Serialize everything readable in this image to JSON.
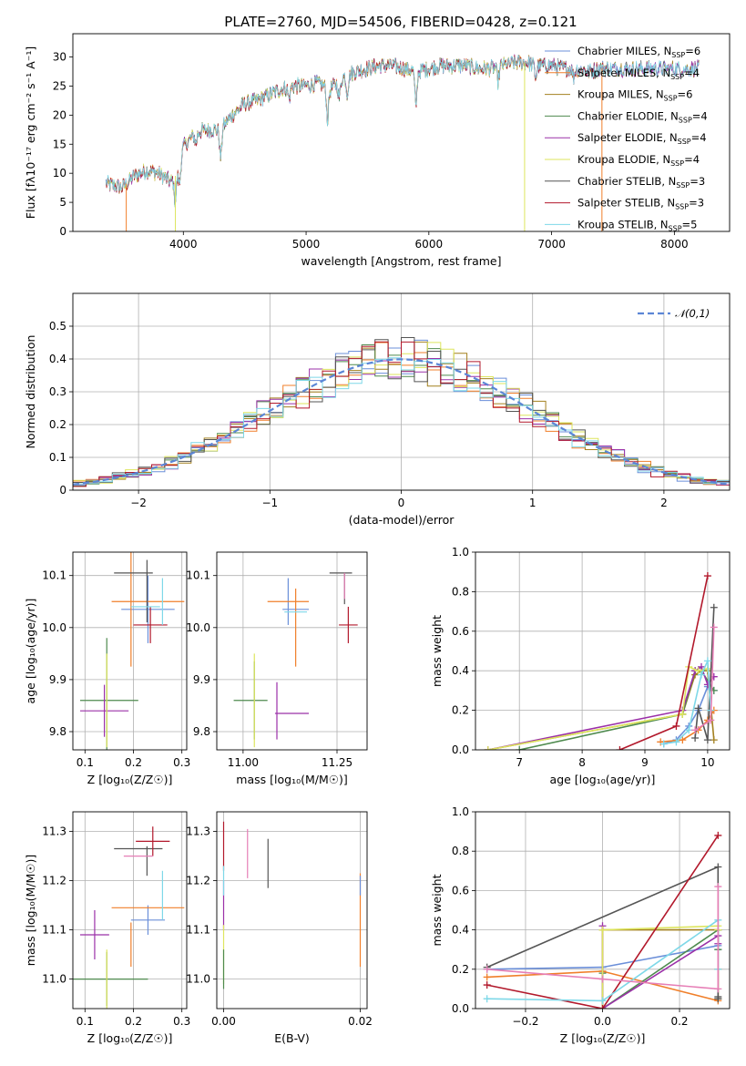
{
  "figure_title": "PLATE=2760, MJD=54506, FIBERID=0428, z=0.121",
  "palette": [
    "#6b8fd9",
    "#f07f2a",
    "#a3801f",
    "#4e8a4e",
    "#9b30a8",
    "#dde55e",
    "#555555",
    "#b2182b",
    "#7ed8e8",
    "#e67fb6",
    "#9acd32",
    "#e6a05f"
  ],
  "chart_data": [
    {
      "id": "spectrum",
      "type": "line",
      "title": "PLATE=2760, MJD=54506, FIBERID=0428, z=0.121",
      "xlabel": "wavelength [Angstrom, rest frame]",
      "ylabel": "Flux [fλ10⁻¹⁷ erg cm⁻² s⁻¹ A⁻¹]",
      "xlim": [
        3100,
        8450
      ],
      "ylim": [
        0,
        34
      ],
      "xticks": [
        4000,
        5000,
        6000,
        7000,
        8000
      ],
      "yticks": [
        0,
        5,
        10,
        15,
        20,
        25,
        30
      ],
      "grid": false,
      "legend_position": "top-right",
      "series_names": [
        "Chabrier MILES, N_SSP=6",
        "Salpeter MILES, N_SSP=4",
        "Kroupa MILES, N_SSP=6",
        "Chabrier ELODIE, N_SSP=4",
        "Salpeter ELODIE, N_SSP=4",
        "Kroupa ELODIE, N_SSP=4",
        "Chabrier STELIB, N_SSP=3",
        "Salpeter STELIB, N_SSP=3",
        "Kroupa STELIB, N_SSP=5"
      ],
      "continuum": [
        [
          3370,
          8.2
        ],
        [
          3500,
          7.5
        ],
        [
          3600,
          9.5
        ],
        [
          3700,
          10.5
        ],
        [
          3800,
          10
        ],
        [
          3900,
          8.5
        ],
        [
          3950,
          10
        ],
        [
          4000,
          14.5
        ],
        [
          4100,
          17
        ],
        [
          4200,
          17.5
        ],
        [
          4300,
          17.5
        ],
        [
          4400,
          20
        ],
        [
          4500,
          22
        ],
        [
          4600,
          22.5
        ],
        [
          4700,
          23.5
        ],
        [
          4800,
          24.5
        ],
        [
          4900,
          25
        ],
        [
          5000,
          25
        ],
        [
          5100,
          25.5
        ],
        [
          5200,
          24.5
        ],
        [
          5300,
          26.5
        ],
        [
          5400,
          27.5
        ],
        [
          5500,
          28
        ],
        [
          5600,
          28.5
        ],
        [
          5700,
          28.5
        ],
        [
          5800,
          28
        ],
        [
          5900,
          27.5
        ],
        [
          6000,
          28
        ],
        [
          6100,
          28.5
        ],
        [
          6200,
          28.5
        ],
        [
          6300,
          28.5
        ],
        [
          6400,
          28
        ],
        [
          6500,
          28
        ],
        [
          6600,
          28.5
        ],
        [
          6700,
          29
        ],
        [
          6800,
          29
        ],
        [
          6900,
          28.5
        ],
        [
          7000,
          28.5
        ],
        [
          7100,
          28
        ],
        [
          7200,
          28
        ],
        [
          7300,
          27.5
        ],
        [
          7400,
          28
        ]
      ],
      "absorption": [
        [
          3934,
          4.5
        ],
        [
          3969,
          3.5
        ],
        [
          4102,
          2
        ],
        [
          4304,
          5
        ],
        [
          4861,
          2
        ],
        [
          5175,
          5.5
        ],
        [
          5270,
          3
        ],
        [
          5335,
          3
        ],
        [
          5894,
          6
        ],
        [
          6563,
          2.5
        ],
        [
          6870,
          2
        ],
        [
          7180,
          1.5
        ]
      ],
      "drops": [
        {
          "x": 3535,
          "series": 1
        },
        {
          "x": 3935,
          "series": 5
        },
        {
          "x": 6780,
          "series": 5
        },
        {
          "x": 7410,
          "series": 1
        }
      ],
      "series_end": [
        8200,
        7470,
        8200,
        7470,
        8200,
        6780,
        8200,
        7470,
        8200
      ]
    },
    {
      "id": "residuals",
      "type": "bar",
      "xlabel": "(data-model)/error",
      "ylabel": "Normed distribution",
      "xlim": [
        -2.5,
        2.5
      ],
      "ylim": [
        0,
        0.6
      ],
      "xticks": [
        -2,
        -1,
        0,
        1,
        2
      ],
      "yticks": [
        0,
        0.1,
        0.2,
        0.3,
        0.4,
        0.5
      ],
      "grid": true,
      "legend_position": "top-right",
      "legend_label": "𝒩(0,1)",
      "reference_curve": {
        "type": "normal",
        "mean": 0,
        "sigma": 1,
        "color": "#5b86d6"
      },
      "bin_width": 0.1,
      "step_series_count": 9
    },
    {
      "id": "age_vs_Z",
      "type": "scatter",
      "xlabel": "Z [log₁₀(Z/Z☉)]",
      "ylabel": "age  [log₁₀(age/yr)]",
      "xlim": [
        0.075,
        0.31
      ],
      "ylim": [
        9.765,
        10.145
      ],
      "xticks": [
        0.1,
        0.2,
        0.3
      ],
      "xtick_labels": [
        "0.1",
        "0.2",
        "0.3"
      ],
      "yticks": [
        9.8,
        9.9,
        10.0,
        10.1
      ],
      "ytick_labels": [
        "9.8",
        "9.9",
        "10.0",
        "10.1"
      ],
      "grid": true,
      "points": [
        {
          "x": 0.23,
          "y": 10.035,
          "xerr": 0.055,
          "yerr": 0.065,
          "c": 0
        },
        {
          "x": 0.195,
          "y": 10.05,
          "xerr": 0.0,
          "yerr": 0.125,
          "c": 1
        },
        {
          "x": 0.23,
          "y": 10.05,
          "xerr": 0.075,
          "yerr": 0.0,
          "c": 1
        },
        {
          "x": 0.145,
          "y": 9.86,
          "xerr": 0.0,
          "yerr": 0.12,
          "c": 3
        },
        {
          "x": 0.15,
          "y": 9.86,
          "xerr": 0.06,
          "yerr": 0.0,
          "c": 3
        },
        {
          "x": 0.14,
          "y": 9.84,
          "xerr": 0.05,
          "yerr": 0.05,
          "c": 4
        },
        {
          "x": 0.145,
          "y": 9.86,
          "xerr": 0.0,
          "yerr": 0.09,
          "c": 5
        },
        {
          "x": 0.2,
          "y": 10.105,
          "xerr": 0.04,
          "yerr": 0.0,
          "c": 6
        },
        {
          "x": 0.228,
          "y": 10.07,
          "xerr": 0.0,
          "yerr": 0.06,
          "c": 6
        },
        {
          "x": 0.235,
          "y": 10.005,
          "xerr": 0.035,
          "yerr": 0.035,
          "c": 7
        },
        {
          "x": 0.26,
          "y": 10.05,
          "xerr": 0.0,
          "yerr": 0.045,
          "c": 8
        },
        {
          "x": 0.225,
          "y": 10.04,
          "xerr": 0.03,
          "yerr": 0.0,
          "c": 8
        }
      ]
    },
    {
      "id": "age_vs_mass",
      "type": "scatter",
      "xlabel": "mass [log₁₀(M/M☉)]",
      "ylabel": "",
      "xlim": [
        10.93,
        11.33
      ],
      "ylim": [
        9.765,
        10.145
      ],
      "xticks": [
        11.0,
        11.25
      ],
      "xtick_labels": [
        "11.00",
        "11.25"
      ],
      "yticks": [
        9.8,
        9.9,
        10.0,
        10.1
      ],
      "ytick_labels": [
        "9.8",
        "9.9",
        "10.0",
        "10.1"
      ],
      "grid": true,
      "points": [
        {
          "x": 11.12,
          "y": 10.05,
          "xerr": 0.0,
          "yerr": 0.045,
          "c": 0
        },
        {
          "x": 11.14,
          "y": 10.035,
          "xerr": 0.035,
          "yerr": 0.0,
          "c": 0
        },
        {
          "x": 11.14,
          "y": 10.0,
          "xerr": 0.0,
          "yerr": 0.075,
          "c": 1
        },
        {
          "x": 11.12,
          "y": 10.05,
          "xerr": 0.055,
          "yerr": 0.0,
          "c": 1
        },
        {
          "x": 11.02,
          "y": 9.86,
          "xerr": 0.045,
          "yerr": 0.0,
          "c": 3
        },
        {
          "x": 11.03,
          "y": 9.86,
          "xerr": 0.0,
          "yerr": 0.075,
          "c": 3
        },
        {
          "x": 11.09,
          "y": 9.84,
          "xerr": 0.0,
          "yerr": 0.055,
          "c": 4
        },
        {
          "x": 11.13,
          "y": 9.835,
          "xerr": 0.045,
          "yerr": 0.0,
          "c": 4
        },
        {
          "x": 11.03,
          "y": 9.86,
          "xerr": 0.0,
          "yerr": 0.09,
          "c": 5
        },
        {
          "x": 11.26,
          "y": 10.105,
          "xerr": 0.03,
          "yerr": 0.0,
          "c": 6
        },
        {
          "x": 11.27,
          "y": 10.075,
          "xerr": 0.0,
          "yerr": 0.03,
          "c": 6
        },
        {
          "x": 11.28,
          "y": 10.005,
          "xerr": 0.025,
          "yerr": 0.035,
          "c": 7
        },
        {
          "x": 11.27,
          "y": 10.08,
          "xerr": 0.0,
          "yerr": 0.025,
          "c": 9
        },
        {
          "x": 11.14,
          "y": 10.03,
          "xerr": 0.03,
          "yerr": 0.0,
          "c": 8
        }
      ]
    },
    {
      "id": "weight_vs_age",
      "type": "line",
      "xlabel": "age  [log₁₀(age/yr)]",
      "ylabel": "mass weight",
      "xlim": [
        6.3,
        10.35
      ],
      "ylim": [
        0,
        1.0
      ],
      "xticks": [
        7,
        8,
        9,
        10
      ],
      "xtick_labels": [
        "7",
        "8",
        "9",
        "10"
      ],
      "yticks": [
        0,
        0.2,
        0.4,
        0.6,
        0.8,
        1.0
      ],
      "ytick_labels": [
        "0.0",
        "0.2",
        "0.4",
        "0.6",
        "0.8",
        "1.0"
      ],
      "grid": true,
      "series": [
        {
          "c": 0,
          "x": [
            9.3,
            9.5,
            9.7,
            9.85,
            10.0,
            10.1
          ],
          "y": [
            0.03,
            0.05,
            0.12,
            0.2,
            0.32,
            0.3
          ]
        },
        {
          "c": 1,
          "x": [
            9.25,
            9.6,
            9.85,
            10.0,
            10.1
          ],
          "y": [
            0.04,
            0.05,
            0.1,
            0.15,
            0.2
          ]
        },
        {
          "c": 2,
          "x": [
            6.5,
            9.6,
            9.8,
            9.9,
            10.0,
            10.1
          ],
          "y": [
            0.0,
            0.18,
            0.38,
            0.4,
            0.4,
            0.05
          ]
        },
        {
          "c": 3,
          "x": [
            7.0,
            9.6,
            9.8,
            9.9,
            10.1
          ],
          "y": [
            0.0,
            0.18,
            0.4,
            0.4,
            0.3
          ]
        },
        {
          "c": 4,
          "x": [
            6.5,
            9.6,
            9.8,
            9.9,
            10.0,
            10.1
          ],
          "y": [
            0.0,
            0.2,
            0.4,
            0.42,
            0.33,
            0.37
          ]
        },
        {
          "c": 5,
          "x": [
            6.5,
            9.6,
            9.7,
            9.85,
            10.0
          ],
          "y": [
            0.0,
            0.18,
            0.42,
            0.4,
            0.41
          ]
        },
        {
          "c": 6,
          "x": [
            9.8,
            9.85,
            10.0,
            10.1
          ],
          "y": [
            0.06,
            0.21,
            0.05,
            0.72
          ]
        },
        {
          "c": 7,
          "x": [
            8.6,
            9.5,
            10.0
          ],
          "y": [
            0.0,
            0.12,
            0.88
          ]
        },
        {
          "c": 8,
          "x": [
            9.3,
            9.5,
            9.7,
            9.9,
            10.0,
            10.05
          ],
          "y": [
            0.03,
            0.04,
            0.1,
            0.38,
            0.45,
            0.2
          ]
        },
        {
          "c": 9,
          "x": [
            9.8,
            10.05,
            10.1
          ],
          "y": [
            0.1,
            0.15,
            0.62
          ]
        }
      ]
    },
    {
      "id": "mass_vs_Z",
      "type": "scatter",
      "xlabel": "Z [log₁₀(Z/Z☉)]",
      "ylabel": "mass [log₁₀(M/M☉)]",
      "xlim": [
        0.075,
        0.31
      ],
      "ylim": [
        10.94,
        11.34
      ],
      "xticks": [
        0.1,
        0.2,
        0.3
      ],
      "xtick_labels": [
        "0.1",
        "0.2",
        "0.3"
      ],
      "yticks": [
        11.0,
        11.1,
        11.2,
        11.3
      ],
      "ytick_labels": [
        "11.0",
        "11.1",
        "11.2",
        "11.3"
      ],
      "grid": true,
      "points": [
        {
          "x": 0.23,
          "y": 11.12,
          "xerr": 0.035,
          "yerr": 0.03,
          "c": 0
        },
        {
          "x": 0.195,
          "y": 11.07,
          "xerr": 0.0,
          "yerr": 0.045,
          "c": 1
        },
        {
          "x": 0.23,
          "y": 11.145,
          "xerr": 0.075,
          "yerr": 0.0,
          "c": 1
        },
        {
          "x": 0.145,
          "y": 11.0,
          "xerr": 0.085,
          "yerr": 0.055,
          "c": 3
        },
        {
          "x": 0.12,
          "y": 11.09,
          "xerr": 0.03,
          "yerr": 0.05,
          "c": 4
        },
        {
          "x": 0.145,
          "y": 11.0,
          "xerr": 0.0,
          "yerr": 0.06,
          "c": 5
        },
        {
          "x": 0.21,
          "y": 11.265,
          "xerr": 0.05,
          "yerr": 0.0,
          "c": 6
        },
        {
          "x": 0.228,
          "y": 11.24,
          "xerr": 0.0,
          "yerr": 0.03,
          "c": 6
        },
        {
          "x": 0.24,
          "y": 11.28,
          "xerr": 0.035,
          "yerr": 0.03,
          "c": 7
        },
        {
          "x": 0.21,
          "y": 11.25,
          "xerr": 0.03,
          "yerr": 0.0,
          "c": 9
        },
        {
          "x": 0.26,
          "y": 11.17,
          "xerr": 0.0,
          "yerr": 0.05,
          "c": 8
        }
      ]
    },
    {
      "id": "mass_vs_ebv",
      "type": "scatter",
      "xlabel": "E(B-V)",
      "ylabel": "",
      "xlim": [
        -0.001,
        0.021
      ],
      "ylim": [
        10.94,
        11.34
      ],
      "xticks": [
        0.0,
        0.02
      ],
      "xtick_labels": [
        "0.00",
        "0.02"
      ],
      "yticks": [
        11.0,
        11.1,
        11.2,
        11.3
      ],
      "ytick_labels": [
        "11.0",
        "11.1",
        "11.2",
        "11.3"
      ],
      "grid": true,
      "points": [
        {
          "x": 0.0,
          "y": 11.27,
          "xerr": 0.0,
          "yerr": 0.05,
          "c": 7
        },
        {
          "x": 0.0,
          "y": 11.15,
          "xerr": 0.0,
          "yerr": 0.05,
          "c": 4
        },
        {
          "x": 0.0,
          "y": 11.05,
          "xerr": 0.0,
          "yerr": 0.06,
          "c": 5
        },
        {
          "x": 0.0,
          "y": 11.02,
          "xerr": 0.0,
          "yerr": 0.04,
          "c": 3
        },
        {
          "x": 0.0035,
          "y": 11.255,
          "xerr": 0.0,
          "yerr": 0.05,
          "c": 9
        },
        {
          "x": 0.0065,
          "y": 11.235,
          "xerr": 0.0,
          "yerr": 0.05,
          "c": 6
        },
        {
          "x": 0.0,
          "y": 11.2,
          "xerr": 0.0,
          "yerr": 0.03,
          "c": 8
        },
        {
          "x": 0.02,
          "y": 11.12,
          "xerr": 0.0,
          "yerr": 0.095,
          "c": 1
        },
        {
          "x": 0.02,
          "y": 11.19,
          "xerr": 0.0,
          "yerr": 0.02,
          "c": 0
        }
      ]
    },
    {
      "id": "weight_vs_Z",
      "type": "line",
      "xlabel": "Z [log₁₀(Z/Z☉)]",
      "ylabel": "mass weight",
      "xlim": [
        -0.33,
        0.33
      ],
      "ylim": [
        0,
        1.0
      ],
      "xticks": [
        -0.2,
        0.0,
        0.2
      ],
      "xtick_labels": [
        "−0.2",
        "0.0",
        "0.2"
      ],
      "yticks": [
        0,
        0.2,
        0.4,
        0.6,
        0.8,
        1.0
      ],
      "ytick_labels": [
        "0.0",
        "0.2",
        "0.4",
        "0.6",
        "0.8",
        "1.0"
      ],
      "grid": true,
      "series": [
        {
          "c": 0,
          "x": [
            -0.3,
            0.0,
            0.3,
            0.3
          ],
          "y": [
            0.2,
            0.21,
            0.32,
            0.3
          ]
        },
        {
          "c": 1,
          "x": [
            -0.3,
            0.0,
            0.3,
            0.3
          ],
          "y": [
            0.16,
            0.19,
            0.04,
            0.2
          ]
        },
        {
          "c": 2,
          "x": [
            0.0,
            0.0,
            0.3,
            0.3
          ],
          "y": [
            0.0,
            0.4,
            0.4,
            0.05
          ]
        },
        {
          "c": 3,
          "x": [
            0.0,
            0.0,
            0.3,
            0.3
          ],
          "y": [
            0.18,
            0.0,
            0.4,
            0.3
          ]
        },
        {
          "c": 4,
          "x": [
            0.0,
            0.0,
            0.3,
            0.3
          ],
          "y": [
            0.42,
            0.0,
            0.37,
            0.33
          ]
        },
        {
          "c": 5,
          "x": [
            0.0,
            0.0,
            0.3,
            0.3
          ],
          "y": [
            0.0,
            0.4,
            0.42,
            0.4
          ]
        },
        {
          "c": 6,
          "x": [
            -0.3,
            0.3,
            0.3,
            0.3
          ],
          "y": [
            0.21,
            0.72,
            0.06,
            0.05
          ]
        },
        {
          "c": 7,
          "x": [
            -0.3,
            0.0,
            0.3
          ],
          "y": [
            0.12,
            0.0,
            0.88
          ]
        },
        {
          "c": 8,
          "x": [
            -0.3,
            0.0,
            0.3,
            0.3
          ],
          "y": [
            0.05,
            0.04,
            0.45,
            0.2
          ]
        },
        {
          "c": 9,
          "x": [
            -0.3,
            0.0,
            0.3,
            0.3
          ],
          "y": [
            0.2,
            0.15,
            0.1,
            0.62
          ]
        }
      ]
    }
  ]
}
